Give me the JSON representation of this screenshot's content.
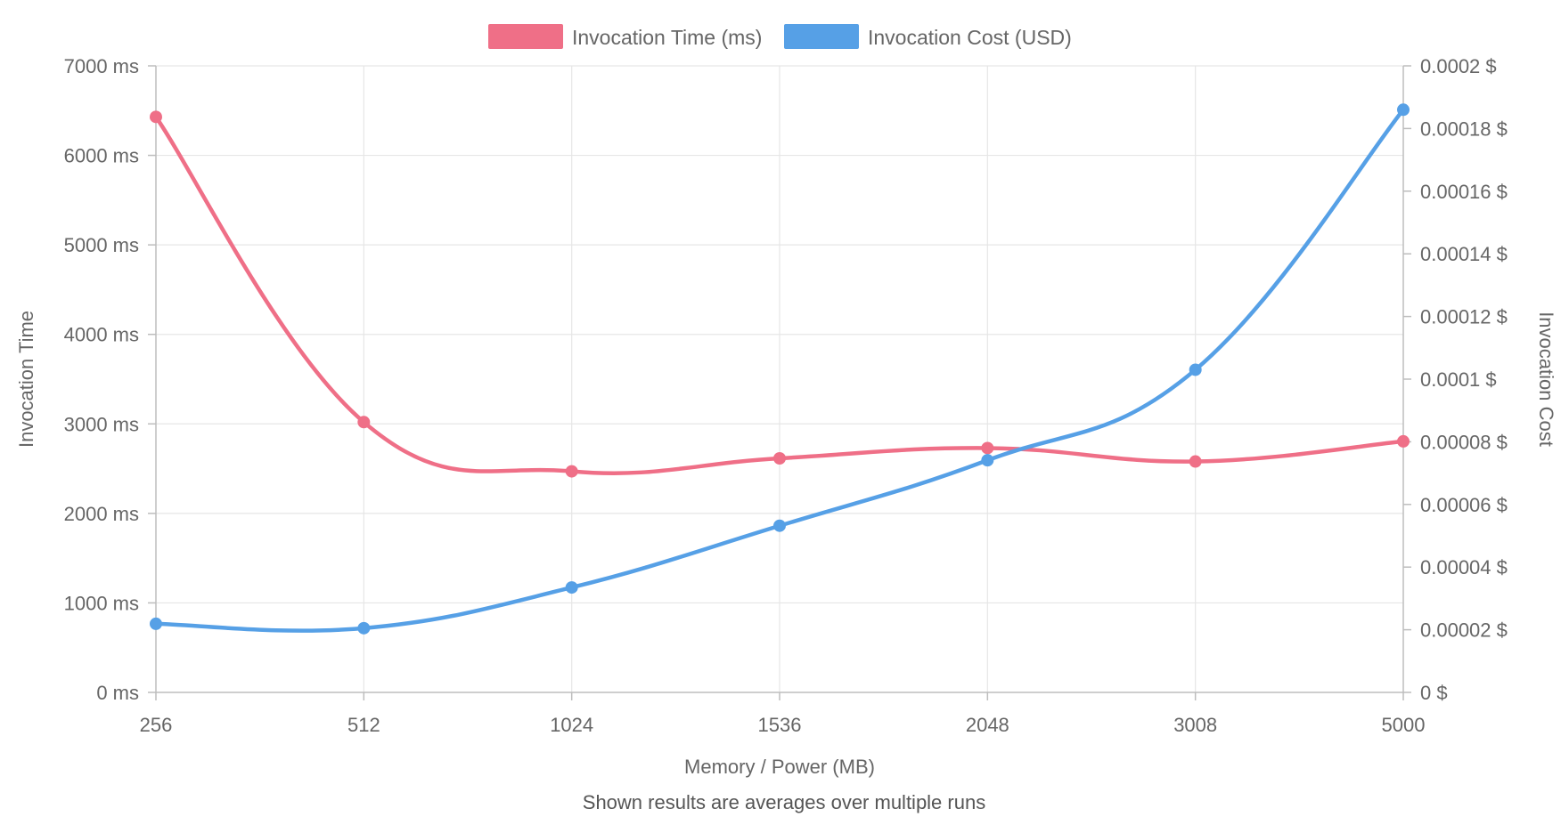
{
  "chart_data": {
    "type": "line",
    "categories": [
      "256",
      "512",
      "1024",
      "1536",
      "2048",
      "3008",
      "5000"
    ],
    "xlabel": "Memory / Power (MB)",
    "y_left": {
      "label": "Invocation Time",
      "range": [
        0,
        7000
      ],
      "ticks": [
        0,
        1000,
        2000,
        3000,
        4000,
        5000,
        6000,
        7000
      ],
      "tick_labels": [
        "0 ms",
        "1000 ms",
        "2000 ms",
        "3000 ms",
        "4000 ms",
        "5000 ms",
        "6000 ms",
        "7000 ms"
      ]
    },
    "y_right": {
      "label": "Invocation Cost",
      "range": [
        0,
        0.0002
      ],
      "ticks": [
        0,
        2e-05,
        4e-05,
        6e-05,
        8e-05,
        0.0001,
        0.00012,
        0.00014,
        0.00016,
        0.00018,
        0.0002
      ],
      "tick_labels": [
        "0 $",
        "0.00002 $",
        "0.00004 $",
        "0.00006 $",
        "0.00008 $",
        "0.0001 $",
        "0.00012 $",
        "0.00014 $",
        "0.00016 $",
        "0.00018 $",
        "0.0002 $"
      ]
    },
    "series": [
      {
        "name": "Invocation Time (ms)",
        "axis": "left",
        "color": "#ef6f87",
        "values": [
          6430,
          3020,
          2470,
          2615,
          2730,
          2580,
          2805
        ]
      },
      {
        "name": "Invocation Cost (USD)",
        "axis": "right",
        "color": "#56a0e6",
        "values": [
          2.19e-05,
          2.05e-05,
          3.35e-05,
          5.32e-05,
          7.41e-05,
          0.000103,
          0.000186
        ]
      }
    ],
    "legend_position": "top",
    "grid": true,
    "footnote": "Shown results are averages over multiple runs"
  }
}
